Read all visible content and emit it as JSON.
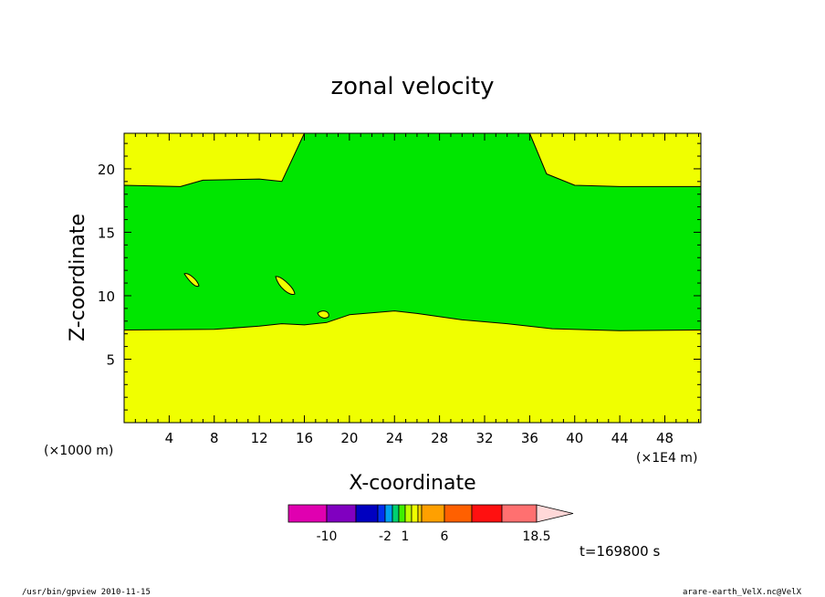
{
  "chart_data": {
    "type": "heatmap",
    "title": "zonal velocity",
    "xlabel": "X-coordinate",
    "ylabel": "Z-coordinate",
    "x_unit_label": "(×1E4 m)",
    "z_unit_label": "(×1000 m)",
    "xlim": [
      0,
      51.2
    ],
    "ylim": [
      0,
      22.8
    ],
    "x_ticks": [
      4,
      8,
      12,
      16,
      20,
      24,
      28,
      32,
      36,
      40,
      44,
      48
    ],
    "y_ticks": [
      5,
      10,
      15,
      20
    ],
    "colors": {
      "background_band": "#f0ff00",
      "interior_band": "#00e600"
    },
    "contour_regions": [
      {
        "name": "lower yellow band",
        "color": "#f0ff00",
        "boundary_upper_z": [
          [
            0,
            7.3
          ],
          [
            8,
            7.35
          ],
          [
            12,
            7.6
          ],
          [
            14,
            7.8
          ],
          [
            16,
            7.7
          ],
          [
            18,
            7.9
          ],
          [
            20,
            8.5
          ],
          [
            24,
            8.8
          ],
          [
            26,
            8.6
          ],
          [
            30,
            8.1
          ],
          [
            34,
            7.8
          ],
          [
            38,
            7.4
          ],
          [
            44,
            7.25
          ],
          [
            51.2,
            7.3
          ]
        ]
      },
      {
        "name": "green interior",
        "color": "#00e600"
      },
      {
        "name": "upper yellow band",
        "color": "#f0ff00",
        "boundary_lower_z": [
          [
            0,
            18.7
          ],
          [
            5,
            18.6
          ],
          [
            7,
            19.1
          ],
          [
            12,
            19.2
          ],
          [
            14,
            19.0
          ],
          [
            16,
            22.8
          ],
          [
            36,
            22.8
          ],
          [
            37.5,
            19.6
          ],
          [
            40,
            18.7
          ],
          [
            44,
            18.6
          ],
          [
            51.2,
            18.6
          ]
        ]
      }
    ],
    "colorbar": {
      "colors": [
        "#e000b0",
        "#8000c0",
        "#0000c0",
        "#0030f0",
        "#00a0f0",
        "#00d070",
        "#40f000",
        "#c0ff00",
        "#f0ff00",
        "#ffd000",
        "#ffa000",
        "#ff6000",
        "#ff1010",
        "#ff7070",
        "#ffb0b0",
        "#ffd8d8"
      ],
      "labels": [
        "-10",
        "-2",
        "1",
        "6",
        "18.5"
      ]
    },
    "time_label": "t=169800 s"
  },
  "footer": {
    "left": "/usr/bin/gpview  2010-11-15",
    "right": "arare-earth_VelX.nc@VelX"
  }
}
